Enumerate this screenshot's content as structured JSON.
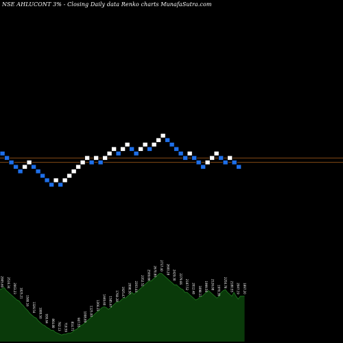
{
  "chart_data": {
    "type": "renko",
    "title": "NSE AHLUCONT 3% - Closing Daily data Renko charts MunafaSutra.com",
    "colors": {
      "up": "#ffffff",
      "down": "#1e6fe8",
      "reference_line": "#b5651d",
      "volume_fill": "#0a3a0a",
      "volume_line": "#1f7a1f",
      "background": "#000000"
    },
    "reference_lines": [
      1,
      2
    ],
    "boxes": [
      {
        "level": 0,
        "dir": "down"
      },
      {
        "level": 1,
        "dir": "down"
      },
      {
        "level": 2,
        "dir": "down"
      },
      {
        "level": 3,
        "dir": "down"
      },
      {
        "level": 4,
        "dir": "down"
      },
      {
        "level": 3,
        "dir": "up"
      },
      {
        "level": 2,
        "dir": "up"
      },
      {
        "level": 3,
        "dir": "down"
      },
      {
        "level": 4,
        "dir": "down"
      },
      {
        "level": 5,
        "dir": "down"
      },
      {
        "level": 6,
        "dir": "down"
      },
      {
        "level": 7,
        "dir": "down"
      },
      {
        "level": 6,
        "dir": "up"
      },
      {
        "level": 7,
        "dir": "down"
      },
      {
        "level": 6,
        "dir": "up"
      },
      {
        "level": 5,
        "dir": "up"
      },
      {
        "level": 4,
        "dir": "up"
      },
      {
        "level": 3,
        "dir": "up"
      },
      {
        "level": 2,
        "dir": "up"
      },
      {
        "level": 1,
        "dir": "up"
      },
      {
        "level": 2,
        "dir": "down"
      },
      {
        "level": 1,
        "dir": "up"
      },
      {
        "level": 2,
        "dir": "down"
      },
      {
        "level": 1,
        "dir": "up"
      },
      {
        "level": 0,
        "dir": "up"
      },
      {
        "level": -1,
        "dir": "up"
      },
      {
        "level": 0,
        "dir": "down"
      },
      {
        "level": -1,
        "dir": "up"
      },
      {
        "level": -2,
        "dir": "up"
      },
      {
        "level": -1,
        "dir": "down"
      },
      {
        "level": 0,
        "dir": "down"
      },
      {
        "level": -1,
        "dir": "up"
      },
      {
        "level": -2,
        "dir": "up"
      },
      {
        "level": -1,
        "dir": "down"
      },
      {
        "level": -2,
        "dir": "up"
      },
      {
        "level": -3,
        "dir": "up"
      },
      {
        "level": -4,
        "dir": "up"
      },
      {
        "level": -3,
        "dir": "down"
      },
      {
        "level": -2,
        "dir": "down"
      },
      {
        "level": -1,
        "dir": "down"
      },
      {
        "level": 0,
        "dir": "down"
      },
      {
        "level": 1,
        "dir": "down"
      },
      {
        "level": 0,
        "dir": "up"
      },
      {
        "level": 1,
        "dir": "down"
      },
      {
        "level": 2,
        "dir": "down"
      },
      {
        "level": 3,
        "dir": "down"
      },
      {
        "level": 2,
        "dir": "up"
      },
      {
        "level": 1,
        "dir": "up"
      },
      {
        "level": 0,
        "dir": "up"
      },
      {
        "level": 1,
        "dir": "down"
      },
      {
        "level": 2,
        "dir": "down"
      },
      {
        "level": 1,
        "dir": "up"
      },
      {
        "level": 2,
        "dir": "down"
      },
      {
        "level": 3,
        "dir": "down"
      }
    ],
    "volume": {
      "values": [
        55,
        56,
        57,
        54,
        52,
        50,
        48,
        46,
        44,
        43,
        40,
        38,
        35,
        33,
        30,
        28,
        26,
        25,
        22,
        20,
        18,
        17,
        15,
        14,
        12,
        12,
        10,
        9,
        8,
        7,
        8,
        8,
        9,
        9,
        10,
        12,
        13,
        15,
        17,
        18,
        20,
        22,
        24,
        26,
        28,
        30,
        32,
        34,
        36,
        37,
        36,
        34,
        36,
        38,
        40,
        42,
        42,
        44,
        46,
        46,
        48,
        50,
        52,
        50,
        52,
        54,
        56,
        58,
        60,
        62,
        64,
        64,
        66,
        68,
        70,
        72,
        72,
        70,
        68,
        66,
        64,
        62,
        60,
        60,
        58,
        56,
        55,
        52,
        52,
        50,
        48,
        46,
        44,
        45,
        47,
        48,
        50,
        52,
        54,
        52,
        50,
        48,
        46,
        48,
        52,
        54,
        55,
        52,
        50,
        48,
        52,
        48,
        45,
        48,
        48,
        48
      ],
      "labels": [
        {
          "i": 0,
          "t": "2905.60"
        },
        {
          "i": 3,
          "t": "2516.34"
        },
        {
          "i": 6,
          "t": "2063.23"
        },
        {
          "i": 9,
          "t": "1825.21"
        },
        {
          "i": 12,
          "t": "1580.16"
        },
        {
          "i": 15,
          "t": "1326.54"
        },
        {
          "i": 18,
          "t": "1080.50"
        },
        {
          "i": 21,
          "t": "930.64"
        },
        {
          "i": 24,
          "t": "864.80"
        },
        {
          "i": 27,
          "t": "782.13"
        },
        {
          "i": 30,
          "t": "718.59"
        },
        {
          "i": 33,
          "t": "814.71"
        },
        {
          "i": 36,
          "t": "907.55"
        },
        {
          "i": 39,
          "t": "1008.89"
        },
        {
          "i": 42,
          "t": "1125.00"
        },
        {
          "i": 45,
          "t": "1266.23"
        },
        {
          "i": 48,
          "t": "1449.60"
        },
        {
          "i": 51,
          "t": "1585.67"
        },
        {
          "i": 54,
          "t": "1760.28"
        },
        {
          "i": 57,
          "t": "1925.47"
        },
        {
          "i": 60,
          "t": "2098.50"
        },
        {
          "i": 63,
          "t": "2203.44"
        },
        {
          "i": 66,
          "t": "2352.51"
        },
        {
          "i": 69,
          "t": "2509.66"
        },
        {
          "i": 72,
          "t": "2670.80"
        },
        {
          "i": 75,
          "t": "2737.40"
        },
        {
          "i": 78,
          "t": "2600.28"
        },
        {
          "i": 81,
          "t": "2429.30"
        },
        {
          "i": 84,
          "t": "2279.66"
        },
        {
          "i": 87,
          "t": "2187.52"
        },
        {
          "i": 90,
          "t": "2012.48"
        },
        {
          "i": 93,
          "t": "1898.11"
        },
        {
          "i": 96,
          "t": "1999.56"
        },
        {
          "i": 99,
          "t": "2126.08"
        },
        {
          "i": 102,
          "t": "1970.39"
        },
        {
          "i": 105,
          "t": "2250.78"
        },
        {
          "i": 108,
          "t": "2180.55"
        },
        {
          "i": 111,
          "t": "2047.19"
        },
        {
          "i": 114,
          "t": "1897.20"
        }
      ]
    }
  }
}
